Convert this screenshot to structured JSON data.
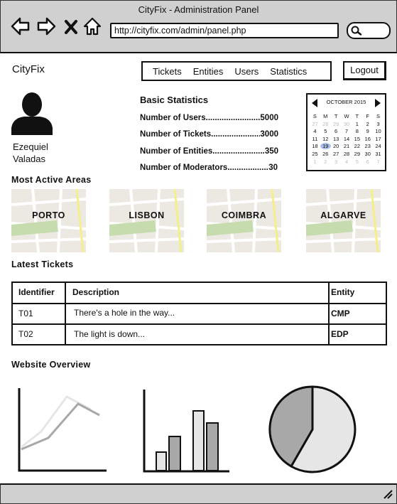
{
  "window": {
    "title": "CityFix - Administration Panel"
  },
  "browser": {
    "url": "http://cityfix.com/admin/panel.php",
    "icons": [
      "back-arrow-icon",
      "forward-arrow-icon",
      "close-icon",
      "home-icon",
      "search-icon"
    ]
  },
  "header": {
    "brand": "CityFix",
    "nav": [
      "Tickets",
      "Entities",
      "Users",
      "Statistics"
    ],
    "logout": "Logout"
  },
  "user": {
    "first_name": "Ezequiel",
    "last_name": "Valadas"
  },
  "stats": {
    "title": "Basic Statistics",
    "rows": [
      {
        "label": "Number of Users",
        "value": "5000"
      },
      {
        "label": "Number of Tickets",
        "value": "3000"
      },
      {
        "label": "Number of Entities",
        "value": "350"
      },
      {
        "label": "Number of Moderators",
        "value": "30"
      }
    ]
  },
  "calendar": {
    "month": "OCTOBER 2015",
    "weekdays": [
      "S",
      "M",
      "T",
      "W",
      "T",
      "F",
      "S"
    ],
    "days": [
      "27",
      "28",
      "29",
      "30",
      "1",
      "2",
      "3",
      "4",
      "5",
      "6",
      "7",
      "8",
      "9",
      "10",
      "11",
      "12",
      "13",
      "14",
      "15",
      "16",
      "17",
      "18",
      "19",
      "20",
      "21",
      "22",
      "23",
      "24",
      "25",
      "26",
      "27",
      "28",
      "29",
      "30",
      "31",
      "1",
      "2",
      "3",
      "4",
      "5",
      "6",
      "7"
    ],
    "selected": "19"
  },
  "areas": {
    "title": "Most Active Areas",
    "items": [
      "PORTO",
      "LISBON",
      "COIMBRA",
      "ALGARVE"
    ]
  },
  "tickets": {
    "title": "Latest Tickets",
    "columns": [
      "Identifier",
      "Description",
      "Entity"
    ],
    "rows": [
      {
        "id": "T01",
        "description": "There's a hole in the way...",
        "entity": "CMP"
      },
      {
        "id": "T02",
        "description": "The light is down...",
        "entity": "EDP"
      }
    ]
  },
  "overview": {
    "title": "Website Overview"
  },
  "colors": {
    "chrome": "#d0d0d0",
    "map_bg": "#ece9e2",
    "map_green": "#c6dcae",
    "map_road_yellow": "#f5ef8a",
    "calendar_highlight": "#a9c0e6",
    "chart_dark": "#a8a8a8",
    "chart_light": "#e6e6e6"
  }
}
